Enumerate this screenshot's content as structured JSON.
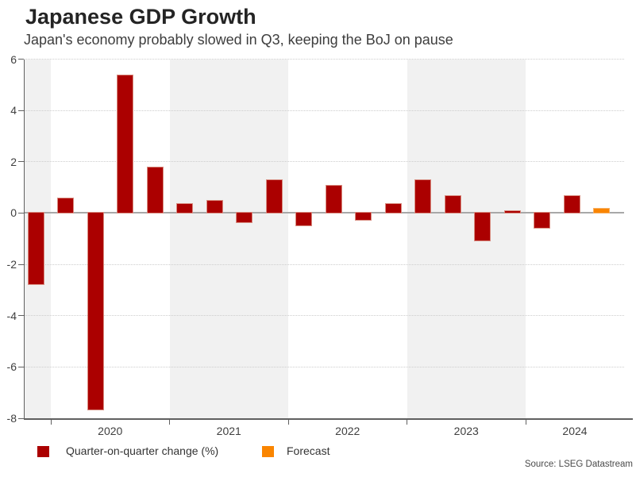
{
  "header": {
    "title": "Japanese GDP Growth",
    "subtitle": "Japan's economy probably slowed in Q3, keeping the BoJ on pause"
  },
  "footer": {
    "source": "Source: LSEG Datastream"
  },
  "legend": {
    "items": [
      {
        "label": "Quarter-on-quarter change (%)",
        "color": "#ab0000"
      },
      {
        "label": "Forecast",
        "color": "#fa8500"
      }
    ]
  },
  "chart_data": {
    "type": "bar",
    "title": "Japanese GDP Growth",
    "subtitle": "Japan's economy probably slowed in Q3, keeping the BoJ on pause",
    "xlabel": "",
    "ylabel": "",
    "ylim": [
      -8,
      6
    ],
    "yticks": [
      6,
      4,
      2,
      0,
      -2,
      -4,
      -6,
      -8
    ],
    "x_axis_year_ticks": [
      "2020",
      "2021",
      "2022",
      "2023",
      "2024"
    ],
    "grid": "horizontal dotted gridlines; alternating shaded year bands",
    "shaded_year_bands": [
      "2019 (partial)",
      "2021",
      "2023"
    ],
    "legend_position": "bottom-left",
    "series": [
      {
        "name": "Quarter-on-quarter change (%)",
        "color": "#ab0000",
        "points": [
          {
            "x": "2019 Q4",
            "y": -2.8
          },
          {
            "x": "2020 Q1",
            "y": 0.6
          },
          {
            "x": "2020 Q2",
            "y": -7.7
          },
          {
            "x": "2020 Q3",
            "y": 5.4
          },
          {
            "x": "2020 Q4",
            "y": 1.8
          },
          {
            "x": "2021 Q1",
            "y": 0.4
          },
          {
            "x": "2021 Q2",
            "y": 0.5
          },
          {
            "x": "2021 Q3",
            "y": -0.4
          },
          {
            "x": "2021 Q4",
            "y": 1.3
          },
          {
            "x": "2022 Q1",
            "y": -0.5
          },
          {
            "x": "2022 Q2",
            "y": 1.1
          },
          {
            "x": "2022 Q3",
            "y": -0.3
          },
          {
            "x": "2022 Q4",
            "y": 0.4
          },
          {
            "x": "2023 Q1",
            "y": 1.3
          },
          {
            "x": "2023 Q2",
            "y": 0.7
          },
          {
            "x": "2023 Q3",
            "y": -1.1
          },
          {
            "x": "2023 Q4",
            "y": 0.1
          },
          {
            "x": "2024 Q1",
            "y": -0.6
          },
          {
            "x": "2024 Q2",
            "y": 0.7
          }
        ]
      },
      {
        "name": "Forecast",
        "color": "#fa8500",
        "points": [
          {
            "x": "2024 Q3",
            "y": 0.2
          }
        ]
      }
    ],
    "palette": {
      "bar": "#ab0000",
      "forecast_bar": "#fa8500",
      "shaded_band": "#f1f1f1",
      "zero_line": "#a8a8a8",
      "gridline": "#cdcdcd",
      "axis": "#606060",
      "tick_text": "#3f3f3f"
    }
  }
}
